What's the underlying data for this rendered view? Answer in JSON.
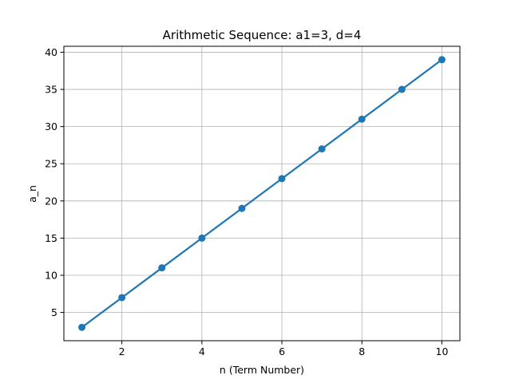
{
  "chart_data": {
    "type": "line",
    "title": "Arithmetic Sequence: a1=3, d=4",
    "xlabel": "n (Term Number)",
    "ylabel": "a_n",
    "x": [
      1,
      2,
      3,
      4,
      5,
      6,
      7,
      8,
      9,
      10
    ],
    "series": [
      {
        "values": [
          3,
          7,
          11,
          15,
          19,
          23,
          27,
          31,
          35,
          39
        ],
        "color": "#1f77b4",
        "marker": "circle"
      }
    ],
    "xlim": [
      0.55,
      10.45
    ],
    "ylim": [
      1.2,
      40.8
    ],
    "xticks": [
      2,
      4,
      6,
      8,
      10
    ],
    "yticks": [
      5,
      10,
      15,
      20,
      25,
      30,
      35,
      40
    ],
    "grid": true,
    "legend": false
  }
}
